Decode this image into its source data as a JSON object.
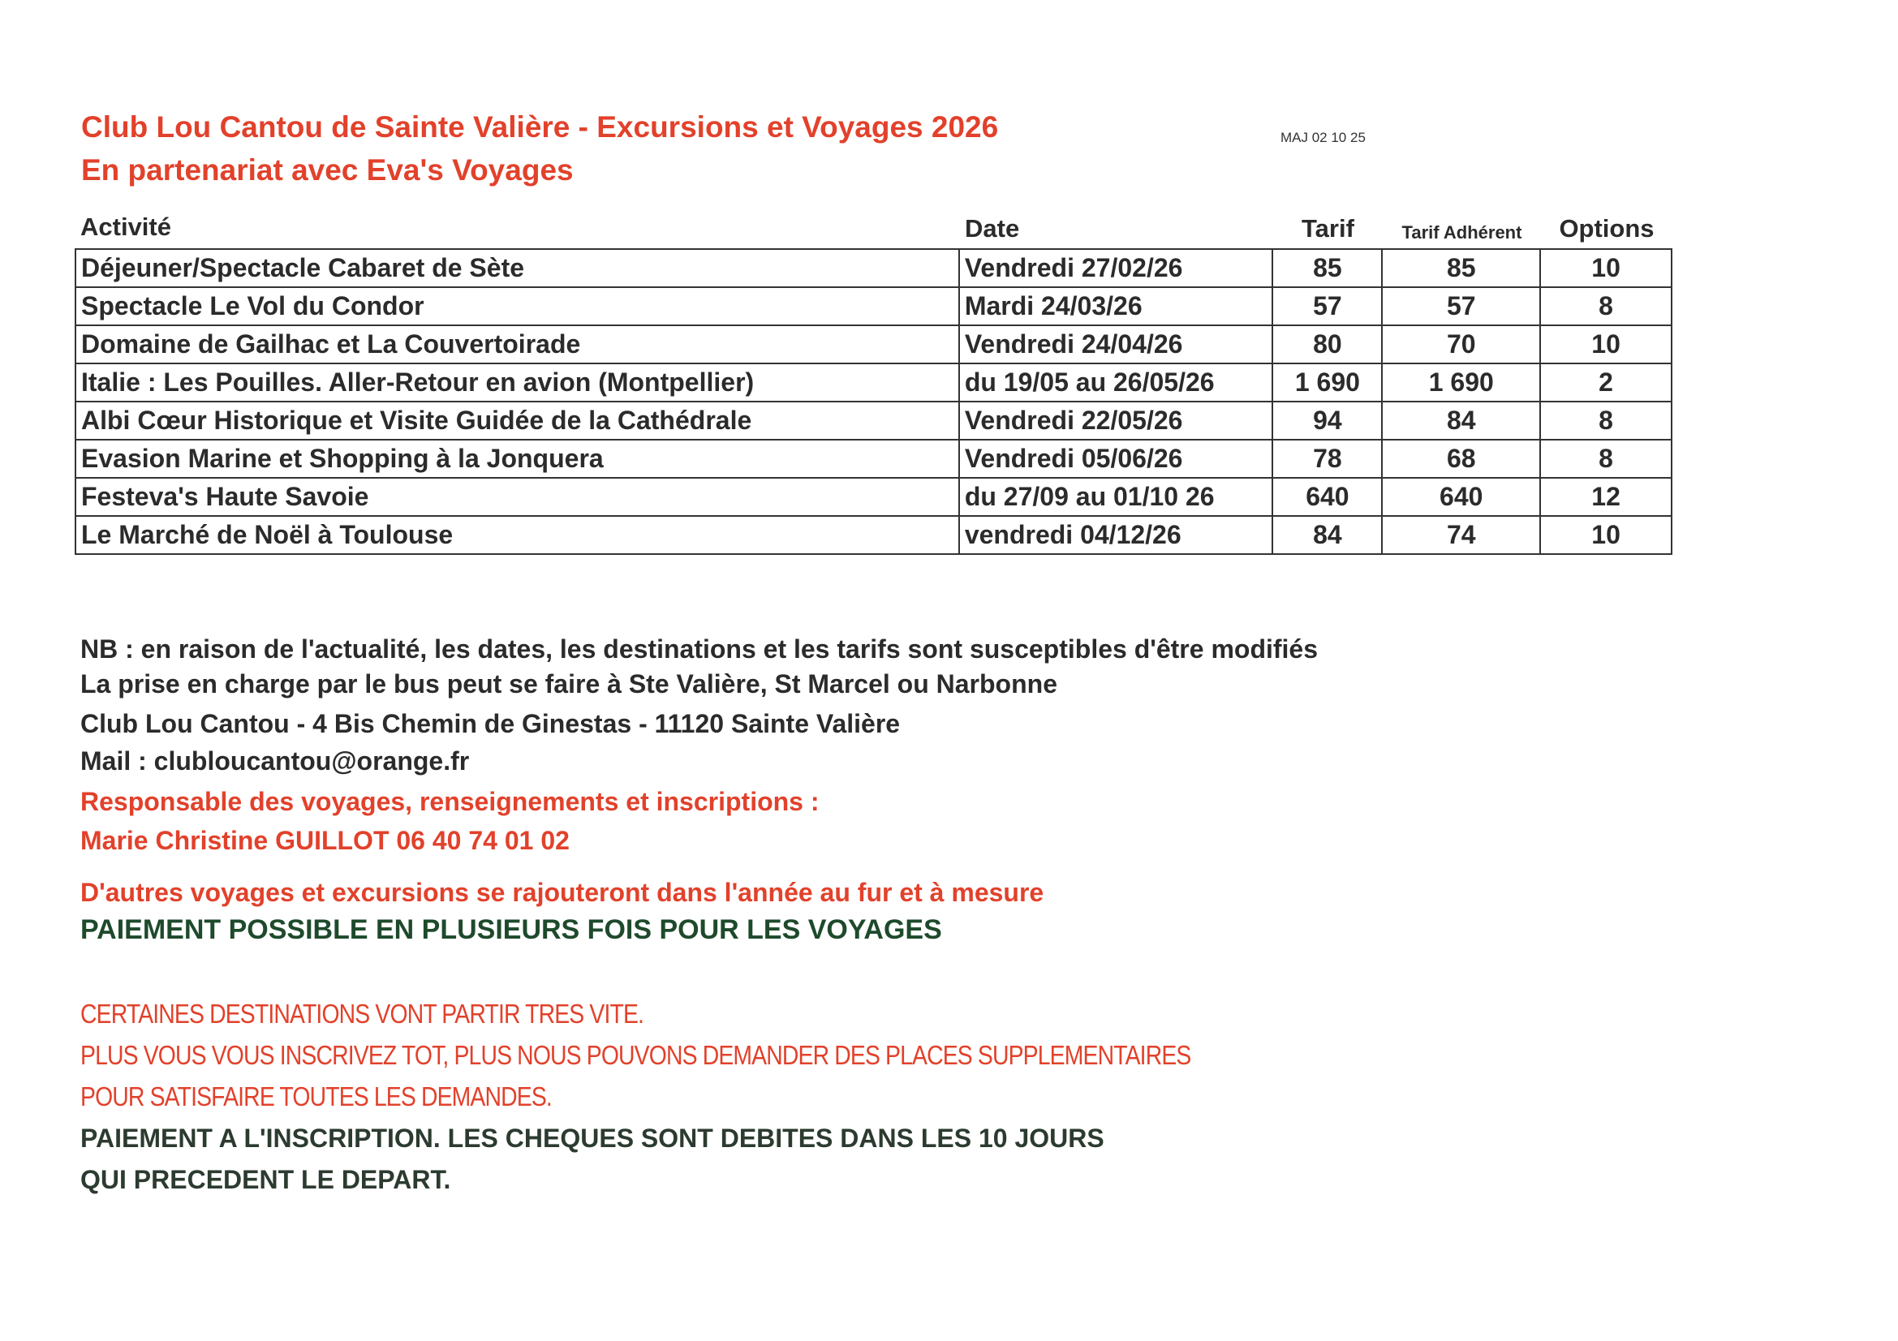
{
  "header": {
    "title": "Club Lou Cantou de Sainte Valière - Excursions et Voyages 2026",
    "subtitle": "En partenariat avec Eva's Voyages",
    "update": "MAJ 02 10 25"
  },
  "table": {
    "columns": [
      "Activité",
      "Date",
      "Tarif",
      "Tarif Adhérent",
      "Options"
    ],
    "rows": [
      [
        "Déjeuner/Spectacle Cabaret de Sète",
        "Vendredi 27/02/26",
        "85",
        "85",
        "10"
      ],
      [
        "Spectacle Le Vol du Condor",
        "Mardi 24/03/26",
        "57",
        "57",
        "8"
      ],
      [
        "Domaine de Gailhac et La Couvertoirade",
        "Vendredi 24/04/26",
        "80",
        "70",
        "10"
      ],
      [
        "Italie : Les Pouilles. Aller-Retour en avion (Montpellier)",
        "du 19/05 au 26/05/26",
        "1 690",
        "1 690",
        "2"
      ],
      [
        "Albi Cœur Historique et Visite Guidée de la Cathédrale",
        "Vendredi 22/05/26",
        "94",
        "84",
        "8"
      ],
      [
        "Evasion Marine et Shopping à la Jonquera",
        "Vendredi 05/06/26",
        "78",
        "68",
        "8"
      ],
      [
        "Festeva's Haute Savoie",
        "du 27/09 au 01/10 26",
        "640",
        "640",
        "12"
      ],
      [
        "Le Marché de Noël à Toulouse",
        "vendredi 04/12/26",
        "84",
        "74",
        "10"
      ]
    ]
  },
  "notes": {
    "nb": "NB : en raison de l'actualité, les dates, les destinations et les tarifs sont susceptibles d'être modifiés",
    "bus": "La prise en charge par le bus peut se faire à Ste Valière, St Marcel ou Narbonne",
    "address": "Club Lou Cantou - 4 Bis Chemin de Ginestas - 11120 Sainte Valière",
    "mail": " Mail : clubloucantou@orange.fr",
    "contact_label": "Responsable des voyages, renseignements et inscriptions :",
    "contact": "Marie Christine GUILLOT 06 40 74 01 02",
    "more": "D'autres voyages et excursions se rajouteront dans l'année au fur et à mesure",
    "payment": "PAIEMENT POSSIBLE EN PLUSIEURS FOIS POUR LES VOYAGES",
    "caps1": "CERTAINES DESTINATIONS VONT PARTIR TRES VITE.",
    "caps2": "PLUS VOUS VOUS INSCRIVEZ TOT, PLUS NOUS POUVONS DEMANDER DES PLACES SUPPLEMENTAIRES",
    "caps3": "POUR SATISFAIRE TOUTES LES DEMANDES.",
    "heavy1": "PAIEMENT A L'INSCRIPTION. LES CHEQUES SONT DEBITES DANS LES 10 JOURS",
    "heavy2": "QUI PRECEDENT LE DEPART."
  },
  "colors": {
    "red": "#e2412b",
    "green": "#1e4a2c",
    "text": "#2b2b2b"
  }
}
